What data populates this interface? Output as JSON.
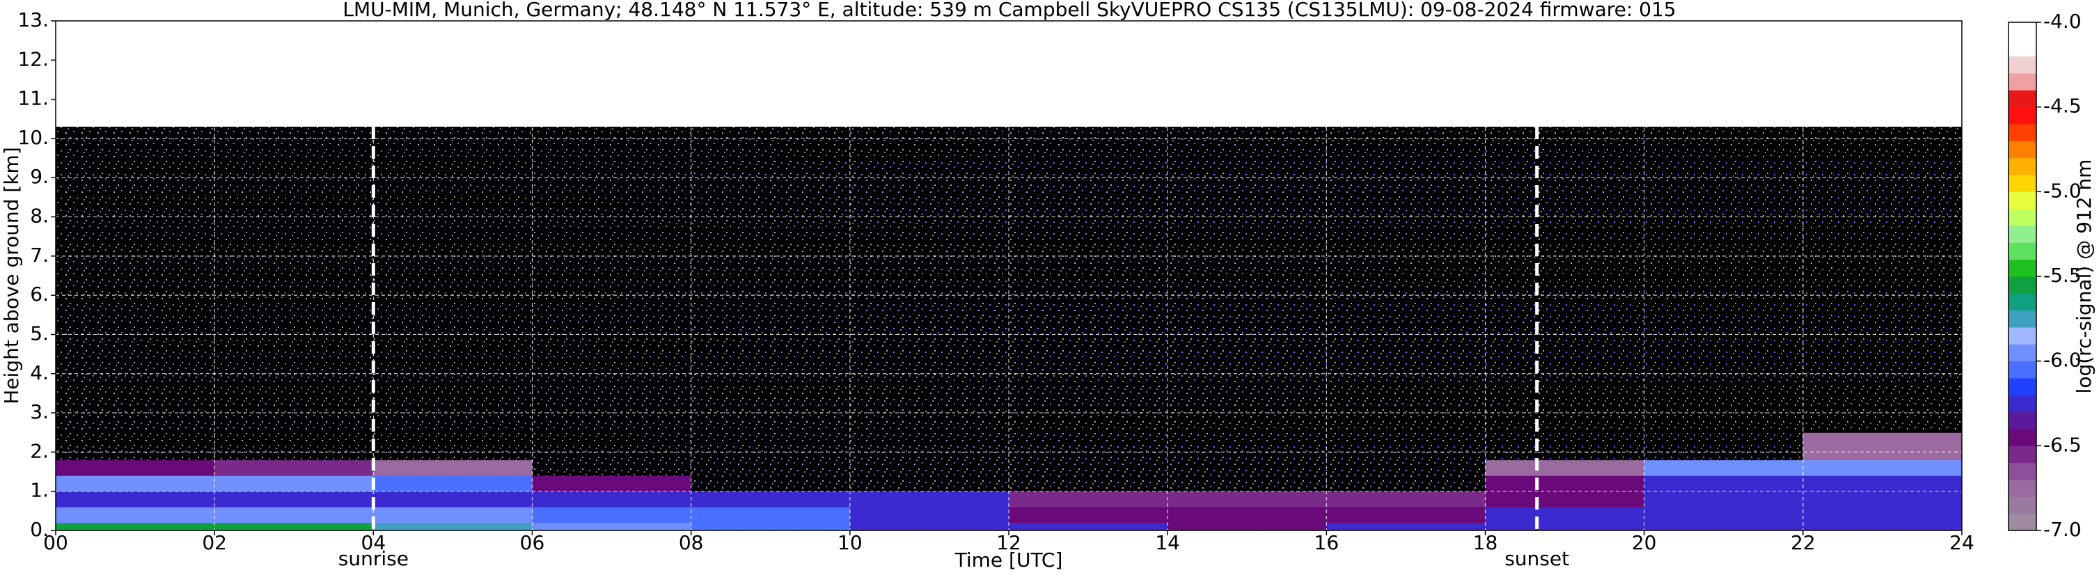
{
  "chart_data": {
    "type": "heatmap",
    "title": "LMU-MIM, Munich, Germany; 48.148° N 11.573° E, altitude: 539 m    Campbell SkyVUEPRO CS135 (CS135LMU): 09-08-2024    firmware: 015",
    "xlabel": "Time [UTC]",
    "ylabel": "Height above ground [km]",
    "x_edges": [
      0,
      2,
      4,
      6,
      8,
      10,
      12,
      14,
      16,
      18,
      20,
      22,
      24
    ],
    "y_edges": [
      0,
      0.2,
      0.6,
      1.0,
      1.4,
      1.8,
      2.5,
      4,
      6,
      8,
      10.3
    ],
    "z": [
      [
        -5.6,
        -5.6,
        -5.7,
        -5.9,
        -6.1,
        -6.2,
        -6.3,
        -6.4,
        -6.3,
        -6.2,
        -6.2,
        -6.2
      ],
      [
        -6.0,
        -6.0,
        -6.0,
        -6.1,
        -6.1,
        -6.2,
        -6.5,
        -6.5,
        -6.5,
        -6.3,
        -6.2,
        -6.2
      ],
      [
        -6.2,
        -6.2,
        -6.2,
        -6.2,
        -6.2,
        -6.3,
        -6.6,
        -6.6,
        -6.6,
        -6.5,
        -6.2,
        -6.2
      ],
      [
        -6.0,
        -6.0,
        -6.1,
        -6.4,
        -7.2,
        -7.3,
        -7.3,
        -7.3,
        -7.2,
        -6.5,
        -6.3,
        -6.3
      ],
      [
        -6.5,
        -6.6,
        -6.8,
        -7.3,
        -7.3,
        -7.3,
        -7.3,
        -7.3,
        -7.3,
        -6.7,
        -5.9,
        -6.0
      ],
      [
        -7.3,
        -7.3,
        -7.3,
        -7.3,
        -7.3,
        -7.3,
        -7.3,
        -7.3,
        -7.3,
        -7.3,
        -7.2,
        -6.8
      ],
      [
        -7.3,
        -7.3,
        -7.3,
        -7.3,
        -7.3,
        -7.3,
        -7.3,
        -7.3,
        -7.3,
        -7.3,
        -7.3,
        -7.3
      ],
      [
        -7.4,
        -7.4,
        -7.3,
        -7.3,
        -7.3,
        -7.3,
        -7.3,
        -7.3,
        -7.3,
        -7.4,
        -7.4,
        -7.4
      ],
      [
        -7.4,
        -7.4,
        -7.3,
        -7.3,
        -7.3,
        -7.3,
        -7.3,
        -7.3,
        -7.3,
        -7.4,
        -7.4,
        -7.4
      ],
      [
        -7.4,
        -7.4,
        -7.3,
        -7.3,
        -7.3,
        -7.2,
        -7.2,
        -7.2,
        -7.3,
        -7.4,
        -7.4,
        -7.4
      ]
    ],
    "xlim": [
      0,
      24
    ],
    "ylim": [
      0,
      13
    ],
    "xticks": [
      {
        "value": 0,
        "label": "00"
      },
      {
        "value": 2,
        "label": "02"
      },
      {
        "value": 4,
        "label": "04"
      },
      {
        "value": 6,
        "label": "06"
      },
      {
        "value": 8,
        "label": "08"
      },
      10,
      12,
      14,
      16,
      18,
      20,
      22,
      24
    ],
    "yticks": [
      {
        "value": 0,
        "label": "0."
      },
      {
        "value": 1,
        "label": "1."
      },
      {
        "value": 2,
        "label": "2."
      },
      {
        "value": 3,
        "label": "3."
      },
      {
        "value": 4,
        "label": "4."
      },
      {
        "value": 5,
        "label": "5."
      },
      {
        "value": 6,
        "label": "6."
      },
      {
        "value": 7,
        "label": "7."
      },
      {
        "value": 8,
        "label": "8."
      },
      {
        "value": 9,
        "label": "9."
      },
      {
        "value": 10,
        "label": "10."
      },
      {
        "value": 11,
        "label": "11."
      },
      {
        "value": 12,
        "label": "12."
      },
      {
        "value": 13,
        "label": "13."
      }
    ],
    "grid": true,
    "markers": [
      {
        "x": 4.0,
        "label": "sunrise"
      },
      {
        "x": 18.65,
        "label": "sunset"
      }
    ],
    "colorbar": {
      "label": "log(rc-signal) @ 912 nm",
      "clim": [
        -7,
        -4
      ],
      "ticks": [
        {
          "value": -4,
          "label": "-4.0"
        },
        -4.5,
        {
          "value": -5,
          "label": "-5.0"
        },
        -5.5,
        {
          "value": -6,
          "label": "-6.0"
        },
        -6.5,
        {
          "value": -7,
          "label": "-7.0"
        }
      ],
      "colors": [
        "#a08aa0",
        "#9a7a9e",
        "#9a6aa0",
        "#8e4e9a",
        "#7a2a8a",
        "#6a0a7a",
        "#5a1a9a",
        "#3a2ad0",
        "#2040ff",
        "#4a70ff",
        "#7090ff",
        "#a0b8ff",
        "#40a0c0",
        "#10a080",
        "#10a040",
        "#20c020",
        "#60e060",
        "#90f090",
        "#c0ff60",
        "#e8ff40",
        "#ffd700",
        "#ffb000",
        "#ff8000",
        "#ff4000",
        "#ff1010",
        "#e81818",
        "#f0a0a0",
        "#f0d0d0",
        "#ffffff",
        "#ffffff"
      ]
    }
  }
}
